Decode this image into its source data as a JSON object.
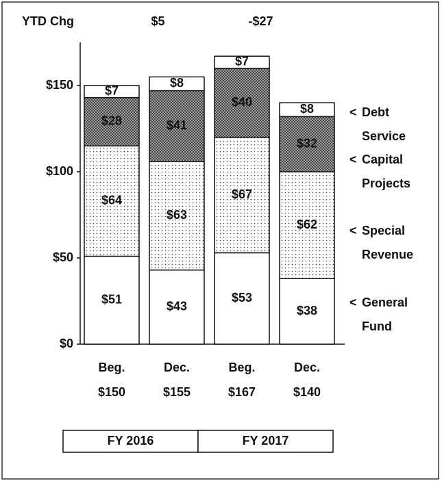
{
  "chart_data": {
    "type": "stacked_bar",
    "ytd_label": "YTD Chg",
    "ytd_change": [
      5,
      -27
    ],
    "ytd_change_labels": [
      "$5",
      "-$27"
    ],
    "categories": [
      "Beg.",
      "Dec.",
      "Beg.",
      "Dec."
    ],
    "totals": [
      150,
      155,
      167,
      140
    ],
    "totals_labels": [
      "$150",
      "$155",
      "$167",
      "$140"
    ],
    "groups": [
      "FY 2016",
      "FY 2017"
    ],
    "legend_marker": "<",
    "series": [
      {
        "name": "General Fund",
        "color": "#ffffff",
        "pattern": "none",
        "values": [
          51,
          43,
          53,
          38
        ],
        "value_labels": [
          "$51",
          "$43",
          "$53",
          "$38"
        ]
      },
      {
        "name": "Special Revenue",
        "color": "#ffffff",
        "pattern": "dots",
        "values": [
          64,
          63,
          67,
          62
        ],
        "value_labels": [
          "$64",
          "$63",
          "$67",
          "$62"
        ]
      },
      {
        "name": "Capital Projects",
        "color": "#ffffff",
        "pattern": "hatch",
        "values": [
          28,
          41,
          40,
          32
        ],
        "value_labels": [
          "$28",
          "$41",
          "$40",
          "$32"
        ]
      },
      {
        "name": "Debt Service",
        "color": "#ffffff",
        "pattern": "none",
        "values": [
          7,
          8,
          7,
          8
        ],
        "value_labels": [
          "$7",
          "$8",
          "$7",
          "$8"
        ]
      }
    ],
    "ylim": [
      0,
      175
    ],
    "yticks": [
      {
        "value": 0,
        "label": "$0"
      },
      {
        "value": 50,
        "label": "$50"
      },
      {
        "value": 100,
        "label": "$100"
      },
      {
        "value": 150,
        "label": "$150"
      }
    ]
  }
}
